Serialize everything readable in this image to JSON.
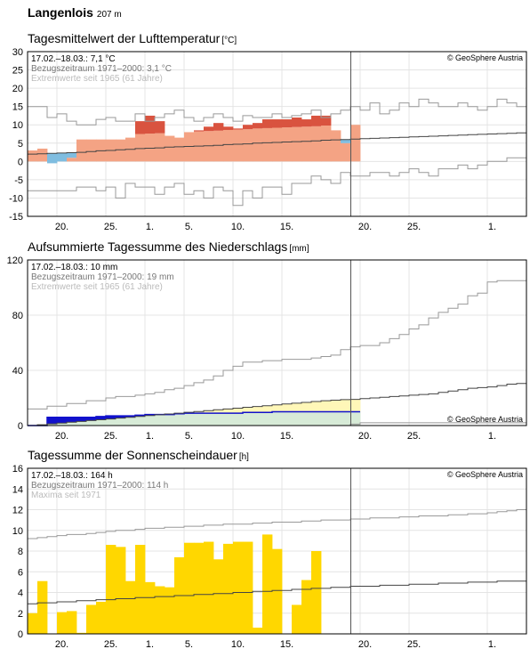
{
  "station": {
    "name": "Langenlois",
    "altitude": "207 m"
  },
  "x_tick_labels": [
    "20.",
    "25.",
    "1.",
    "5.",
    "10.",
    "15.",
    "20.",
    "25.",
    "1."
  ],
  "copyright": "© GeoSphere Austria",
  "colors": {
    "warm_anomaly": "#d9533f",
    "cold_anomaly": "#7fbde0",
    "base_fill": "#f4a384",
    "precip_current": "#1111cc",
    "precip_below": "#d7ebd7",
    "precip_above": "#fff7b8",
    "sunshine": "#ffd700",
    "grid": "#e4e4e4",
    "envelope": "#999999"
  },
  "chart_data": [
    {
      "id": "temp",
      "type": "step",
      "title": "Tagesmittelwert der Lufttemperatur",
      "unit": "[°C]",
      "ylim": [
        -15,
        30
      ],
      "yticks": [
        -15,
        -10,
        -5,
        0,
        5,
        10,
        15,
        20,
        25,
        30
      ],
      "days": 51,
      "day_ticks": [
        3,
        8,
        12,
        16,
        21,
        26,
        34,
        39,
        47
      ],
      "today_index": 33,
      "info": [
        "17.02.–18.03.: 7,1 °C",
        "Bezugszeitraum 1971–2000: 3,1 °C",
        "Extremwerte seit 1965 (61 Jahre)"
      ],
      "series": [
        {
          "name": "observed",
          "values": [
            3,
            3.5,
            -0.5,
            0,
            1,
            6,
            6,
            6,
            6,
            6,
            6.5,
            11,
            12.5,
            11,
            7,
            6.5,
            8,
            8.5,
            9.5,
            10.5,
            9.5,
            9,
            10,
            10.5,
            11.5,
            11.5,
            11.5,
            12,
            11.5,
            12.5,
            12.5,
            8.5,
            5,
            10
          ]
        },
        {
          "name": "normal",
          "values": [
            2,
            2.1,
            2.2,
            2.3,
            2.4,
            2.5,
            2.7,
            2.9,
            3.0,
            3.2,
            3.3,
            3.5,
            3.6,
            3.7,
            3.9,
            4.0,
            4.1,
            4.2,
            4.3,
            4.4,
            4.6,
            4.7,
            4.8,
            5.0,
            5.1,
            5.2,
            5.3,
            5.4,
            5.5,
            5.6,
            5.8,
            5.9,
            6.0,
            6.1,
            6.2,
            6.3,
            6.4,
            6.5,
            6.6,
            6.7,
            6.8,
            6.9,
            7.0,
            7.1,
            7.2,
            7.3,
            7.4,
            7.5,
            7.6,
            7.7,
            7.8
          ]
        },
        {
          "name": "max",
          "values": [
            15,
            15,
            12,
            13,
            11,
            10,
            10,
            11.5,
            12,
            11,
            11,
            13,
            11,
            12,
            13,
            14,
            12,
            11,
            12,
            13,
            12,
            11,
            12.5,
            12,
            12,
            13,
            12,
            12.5,
            13,
            14,
            12,
            13,
            14,
            15,
            14,
            16,
            13,
            14,
            16,
            15,
            17,
            16,
            15,
            15,
            16,
            15,
            14,
            15,
            17,
            16,
            15
          ]
        },
        {
          "name": "min",
          "values": [
            -8,
            -8,
            -8,
            -8,
            -8,
            -7,
            -7,
            -8,
            -7,
            -10,
            -6,
            -7,
            -7,
            -9,
            -7,
            -6,
            -9,
            -8,
            -10,
            -7,
            -8,
            -12,
            -8,
            -10,
            -7,
            -7,
            -9,
            -6,
            -6,
            -4,
            -5,
            -6,
            -3,
            -4,
            -4,
            -3,
            -3,
            -4,
            -3,
            -2,
            -3,
            -4,
            -2,
            -2,
            -1,
            -2,
            -1,
            0,
            0,
            1,
            1
          ]
        }
      ]
    },
    {
      "id": "precip",
      "type": "step",
      "title": "Aufsummierte Tagessumme des Niederschlags",
      "unit": "[mm]",
      "ylim": [
        0,
        120
      ],
      "yticks": [
        0,
        40,
        80,
        120
      ],
      "days": 51,
      "day_ticks": [
        3,
        8,
        12,
        16,
        21,
        26,
        34,
        39,
        47
      ],
      "today_index": 33,
      "info": [
        "17.02.–18.03.: 10 mm",
        "Bezugszeitraum 1971–2000: 19 mm",
        "Extremwerte seit 1965 (61 Jahre)"
      ],
      "series": [
        {
          "name": "observed",
          "values": [
            0,
            0,
            6,
            6,
            6,
            6,
            6,
            6.5,
            7,
            7,
            7,
            7.5,
            8,
            8,
            8,
            8.5,
            9,
            9,
            9,
            9,
            9,
            9,
            9.5,
            9.5,
            9.5,
            10,
            10,
            10,
            10,
            10,
            10,
            10,
            10,
            10
          ]
        },
        {
          "name": "normal",
          "values": [
            0,
            0.6,
            1.2,
            1.8,
            2.4,
            3,
            3.6,
            4.2,
            4.8,
            5.4,
            6,
            6.6,
            7.2,
            7.8,
            8.4,
            9,
            9.6,
            10.2,
            10.8,
            11.4,
            12,
            12.6,
            13.2,
            13.8,
            14.4,
            15,
            15.6,
            16.2,
            16.8,
            17.4,
            18,
            18.4,
            18.8,
            19,
            19.5,
            20,
            20.5,
            21,
            21.5,
            22,
            22.5,
            23,
            24,
            25,
            26,
            27,
            27.5,
            28,
            29,
            30,
            30.5
          ]
        },
        {
          "name": "max",
          "values": [
            12,
            12,
            14,
            14,
            16,
            16,
            18,
            18,
            20,
            21,
            21,
            22,
            23,
            24,
            26,
            27,
            29,
            31,
            33,
            36,
            40,
            43,
            46,
            46,
            47,
            47,
            48,
            48,
            48,
            49,
            50,
            51,
            55,
            57,
            58,
            58,
            60,
            63,
            66,
            70,
            73,
            78,
            82,
            85,
            88,
            94,
            96,
            104,
            105,
            105,
            105
          ]
        },
        {
          "name": "min",
          "values": [
            0,
            0,
            0,
            0,
            0,
            0,
            0,
            0,
            0,
            0,
            0,
            0,
            0,
            0,
            0,
            0,
            0,
            0,
            0,
            0,
            0,
            0,
            0,
            0,
            0,
            0,
            0,
            0,
            0,
            0,
            0,
            0,
            0,
            1,
            2,
            2,
            2,
            2,
            2,
            2,
            2,
            2,
            2,
            2,
            2,
            2,
            2,
            2,
            2,
            2,
            2
          ]
        }
      ]
    },
    {
      "id": "sun",
      "type": "bar",
      "title": "Tagessumme der Sonnenscheindauer",
      "unit": "[h]",
      "ylim": [
        0,
        16
      ],
      "yticks": [
        0,
        2,
        4,
        6,
        8,
        10,
        12,
        14,
        16
      ],
      "days": 51,
      "day_ticks": [
        3,
        8,
        12,
        16,
        21,
        26,
        34,
        39,
        47
      ],
      "today_index": 33,
      "info": [
        "17.02.–18.03.: 164 h",
        "Bezugszeitraum 1971–2000: 114 h",
        "Maxima seit 1971"
      ],
      "series": [
        {
          "name": "observed",
          "values": [
            2,
            5.1,
            0,
            2.1,
            2.2,
            0.1,
            2.8,
            3.1,
            8.6,
            8.4,
            5.1,
            8.6,
            5,
            4.6,
            4.5,
            7.4,
            8.8,
            8.8,
            8.9,
            7.2,
            8.7,
            8.9,
            8.9,
            0.6,
            9.6,
            8.2,
            0,
            2.8,
            5.2,
            8.0,
            0,
            0,
            0,
            0
          ]
        },
        {
          "name": "normal",
          "values": [
            2.9,
            3.0,
            3.0,
            3.1,
            3.1,
            3.2,
            3.2,
            3.3,
            3.3,
            3.4,
            3.4,
            3.5,
            3.5,
            3.6,
            3.6,
            3.7,
            3.7,
            3.8,
            3.8,
            3.9,
            3.9,
            4.0,
            4.0,
            4.1,
            4.1,
            4.2,
            4.2,
            4.3,
            4.3,
            4.4,
            4.4,
            4.5,
            4.5,
            4.6,
            4.6,
            4.6,
            4.7,
            4.7,
            4.7,
            4.8,
            4.8,
            4.8,
            4.9,
            4.9,
            4.9,
            5.0,
            5.0,
            5.0,
            5.1,
            5.1,
            5.1
          ]
        },
        {
          "name": "max",
          "values": [
            9.2,
            9.3,
            9.4,
            9.5,
            9.6,
            9.6,
            9.7,
            9.8,
            9.9,
            10.0,
            10.0,
            10.1,
            10.2,
            10.2,
            10.3,
            10.3,
            10.4,
            10.4,
            10.5,
            10.5,
            10.6,
            10.6,
            10.6,
            10.7,
            10.7,
            10.8,
            10.8,
            10.8,
            10.9,
            10.9,
            11.0,
            11.0,
            11.0,
            11.1,
            11.1,
            11.2,
            11.2,
            11.2,
            11.3,
            11.3,
            11.4,
            11.4,
            11.4,
            11.5,
            11.5,
            11.6,
            11.6,
            11.7,
            11.8,
            11.9,
            12.0
          ]
        }
      ]
    }
  ]
}
